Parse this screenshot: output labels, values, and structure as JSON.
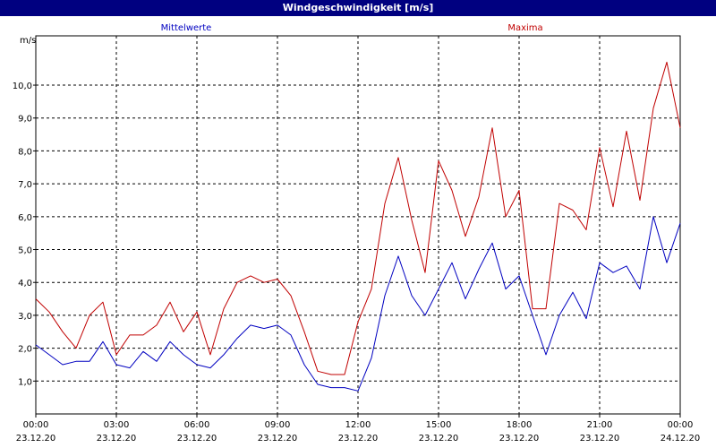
{
  "window": {
    "title": "Windgeschwindigkeit [m/s]"
  },
  "chart_data": {
    "type": "line",
    "title": "Windgeschwindigkeit [m/s]",
    "ylabel": "m/s",
    "xlabel": "",
    "ylim": [
      0,
      11.5
    ],
    "yticks": [
      "1,0",
      "2,0",
      "3,0",
      "4,0",
      "5,0",
      "6,0",
      "7,0",
      "8,0",
      "9,0",
      "10,0"
    ],
    "ytick_values": [
      1,
      2,
      3,
      4,
      5,
      6,
      7,
      8,
      9,
      10
    ],
    "xlim_hours": [
      0,
      24
    ],
    "xticks": [
      {
        "time": "00:00",
        "date": "23.12.20"
      },
      {
        "time": "03:00",
        "date": "23.12.20"
      },
      {
        "time": "06:00",
        "date": "23.12.20"
      },
      {
        "time": "09:00",
        "date": "23.12.20"
      },
      {
        "time": "12:00",
        "date": "23.12.20"
      },
      {
        "time": "15:00",
        "date": "23.12.20"
      },
      {
        "time": "18:00",
        "date": "23.12.20"
      },
      {
        "time": "21:00",
        "date": "23.12.20"
      },
      {
        "time": "00:00",
        "date": "24.12.20"
      }
    ],
    "grid": true,
    "series": [
      {
        "name": "Mittelwerte",
        "color": "#0000c0",
        "x": [
          0,
          0.5,
          1,
          1.5,
          2,
          2.5,
          3,
          3.5,
          4,
          4.5,
          5,
          5.5,
          6,
          6.5,
          7,
          7.5,
          8,
          8.5,
          9,
          9.5,
          10,
          10.5,
          11,
          11.5,
          12,
          12.5,
          13,
          13.5,
          14,
          14.5,
          15,
          15.5,
          16,
          16.5,
          17,
          17.5,
          18,
          18.5,
          19,
          19.5,
          20,
          20.5,
          21,
          21.5,
          22,
          22.5,
          23,
          23.5,
          24
        ],
        "values": [
          2.1,
          1.8,
          1.5,
          1.6,
          1.6,
          2.2,
          1.5,
          1.4,
          1.9,
          1.6,
          2.2,
          1.8,
          1.5,
          1.4,
          1.8,
          2.3,
          2.7,
          2.6,
          2.7,
          2.4,
          1.5,
          0.9,
          0.8,
          0.8,
          0.7,
          1.7,
          3.6,
          4.8,
          3.6,
          3.0,
          3.8,
          4.6,
          3.5,
          4.4,
          5.2,
          3.8,
          4.2,
          3.0,
          1.8,
          3.0,
          3.7,
          2.9,
          4.6,
          4.3,
          4.5,
          3.8,
          6.0,
          4.6,
          5.8
        ]
      },
      {
        "name": "Maxima",
        "color": "#c00000",
        "x": [
          0,
          0.5,
          1,
          1.5,
          2,
          2.5,
          3,
          3.5,
          4,
          4.5,
          5,
          5.5,
          6,
          6.5,
          7,
          7.5,
          8,
          8.5,
          9,
          9.5,
          10,
          10.5,
          11,
          11.5,
          12,
          12.5,
          13,
          13.5,
          14,
          14.5,
          15,
          15.5,
          16,
          16.5,
          17,
          17.5,
          18,
          18.5,
          19,
          19.5,
          20,
          20.5,
          21,
          21.5,
          22,
          22.5,
          23,
          23.5,
          24
        ],
        "values": [
          3.5,
          3.1,
          2.5,
          2.0,
          3.0,
          3.4,
          1.8,
          2.4,
          2.4,
          2.7,
          3.4,
          2.5,
          3.1,
          1.8,
          3.2,
          4.0,
          4.2,
          4.0,
          4.1,
          3.6,
          2.5,
          1.3,
          1.2,
          1.2,
          2.8,
          3.8,
          6.4,
          7.8,
          5.9,
          4.3,
          7.7,
          6.8,
          5.4,
          6.6,
          8.7,
          6.0,
          6.8,
          3.2,
          3.2,
          6.4,
          6.2,
          5.6,
          8.1,
          6.3,
          8.6,
          6.5,
          9.3,
          10.7,
          8.7
        ]
      }
    ]
  }
}
